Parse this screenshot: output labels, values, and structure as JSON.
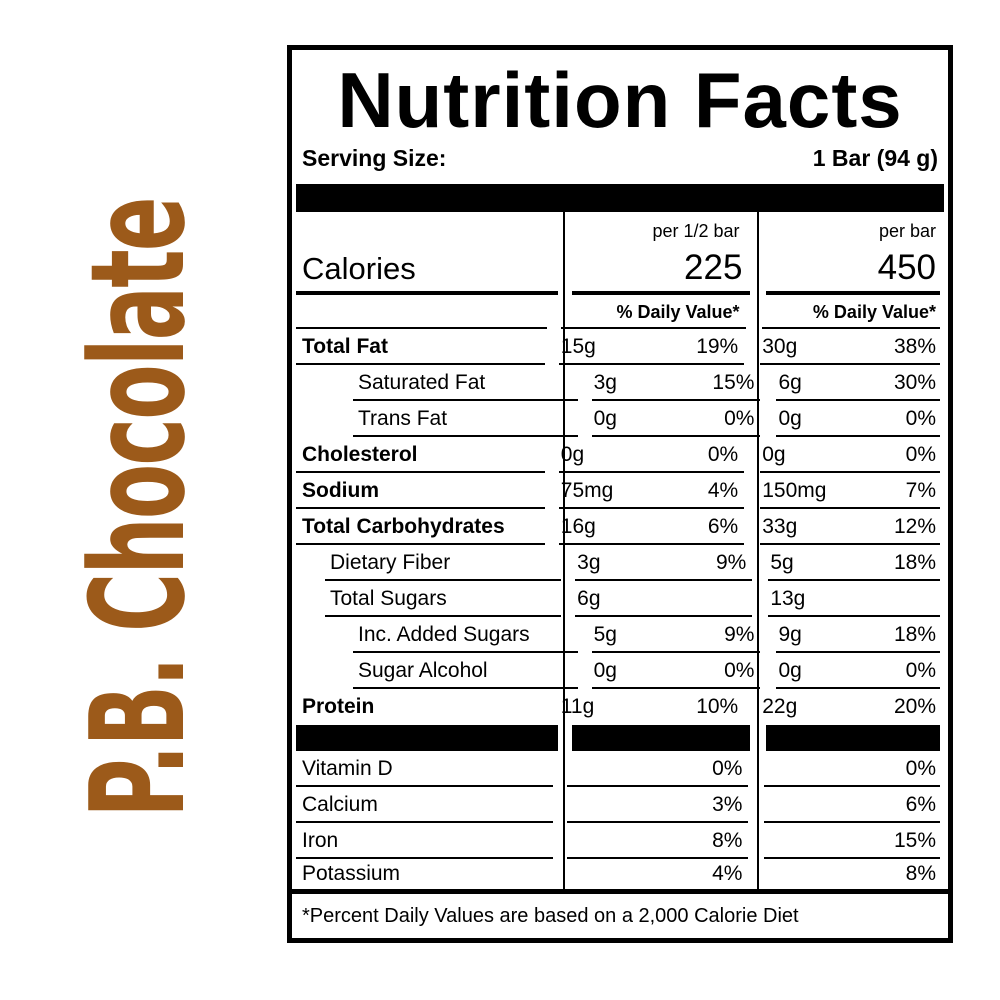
{
  "product": {
    "name": "P.B. Chocolate",
    "accent_color": "#9C5A1A"
  },
  "label": {
    "title": "Nutrition Facts",
    "serving_size_label": "Serving Size:",
    "serving_size_value": "1 Bar (94 g)",
    "calories_label": "Calories",
    "columns": [
      {
        "header": "per 1/2 bar",
        "calories": "225",
        "daily_value_header": "% Daily Value*"
      },
      {
        "header": "per bar",
        "calories": "450",
        "daily_value_header": "% Daily Value*"
      }
    ],
    "rows": [
      {
        "label": "Total Fat",
        "col1": {
          "amount": "15g",
          "dv": "19%"
        },
        "col2": {
          "amount": "30g",
          "dv": "38%"
        }
      },
      {
        "label": "Saturated Fat",
        "col1": {
          "amount": "3g",
          "dv": "15%"
        },
        "col2": {
          "amount": "6g",
          "dv": "30%"
        }
      },
      {
        "label": "Trans Fat",
        "col1": {
          "amount": "0g",
          "dv": "0%"
        },
        "col2": {
          "amount": "0g",
          "dv": "0%"
        }
      },
      {
        "label": "Cholesterol",
        "col1": {
          "amount": "0g",
          "dv": "0%"
        },
        "col2": {
          "amount": "0g",
          "dv": "0%"
        }
      },
      {
        "label": "Sodium",
        "col1": {
          "amount": "75mg",
          "dv": "4%"
        },
        "col2": {
          "amount": "150mg",
          "dv": "7%"
        }
      },
      {
        "label": "Total Carbohydrates",
        "col1": {
          "amount": "16g",
          "dv": "6%"
        },
        "col2": {
          "amount": "33g",
          "dv": "12%"
        }
      },
      {
        "label": "Dietary Fiber",
        "col1": {
          "amount": "3g",
          "dv": "9%"
        },
        "col2": {
          "amount": "5g",
          "dv": "18%"
        }
      },
      {
        "label": "Total Sugars",
        "col1": {
          "amount": "6g",
          "dv": ""
        },
        "col2": {
          "amount": "13g",
          "dv": ""
        }
      },
      {
        "label": "Inc. Added Sugars",
        "col1": {
          "amount": "5g",
          "dv": "9%"
        },
        "col2": {
          "amount": "9g",
          "dv": "18%"
        }
      },
      {
        "label": "Sugar Alcohol",
        "col1": {
          "amount": "0g",
          "dv": "0%"
        },
        "col2": {
          "amount": "0g",
          "dv": "0%"
        }
      },
      {
        "label": "Protein",
        "col1": {
          "amount": "11g",
          "dv": "10%"
        },
        "col2": {
          "amount": "22g",
          "dv": "20%"
        }
      }
    ],
    "micronutrients": [
      {
        "label": "Vitamin D",
        "col1": {
          "dv": "0%"
        },
        "col2": {
          "dv": "0%"
        }
      },
      {
        "label": "Calcium",
        "col1": {
          "dv": "3%"
        },
        "col2": {
          "dv": "6%"
        }
      },
      {
        "label": "Iron",
        "col1": {
          "dv": "8%"
        },
        "col2": {
          "dv": "15%"
        }
      },
      {
        "label": "Potassium",
        "col1": {
          "dv": "4%"
        },
        "col2": {
          "dv": "8%"
        }
      }
    ],
    "footnote": "*Percent Daily Values are based on a 2,000 Calorie Diet"
  }
}
